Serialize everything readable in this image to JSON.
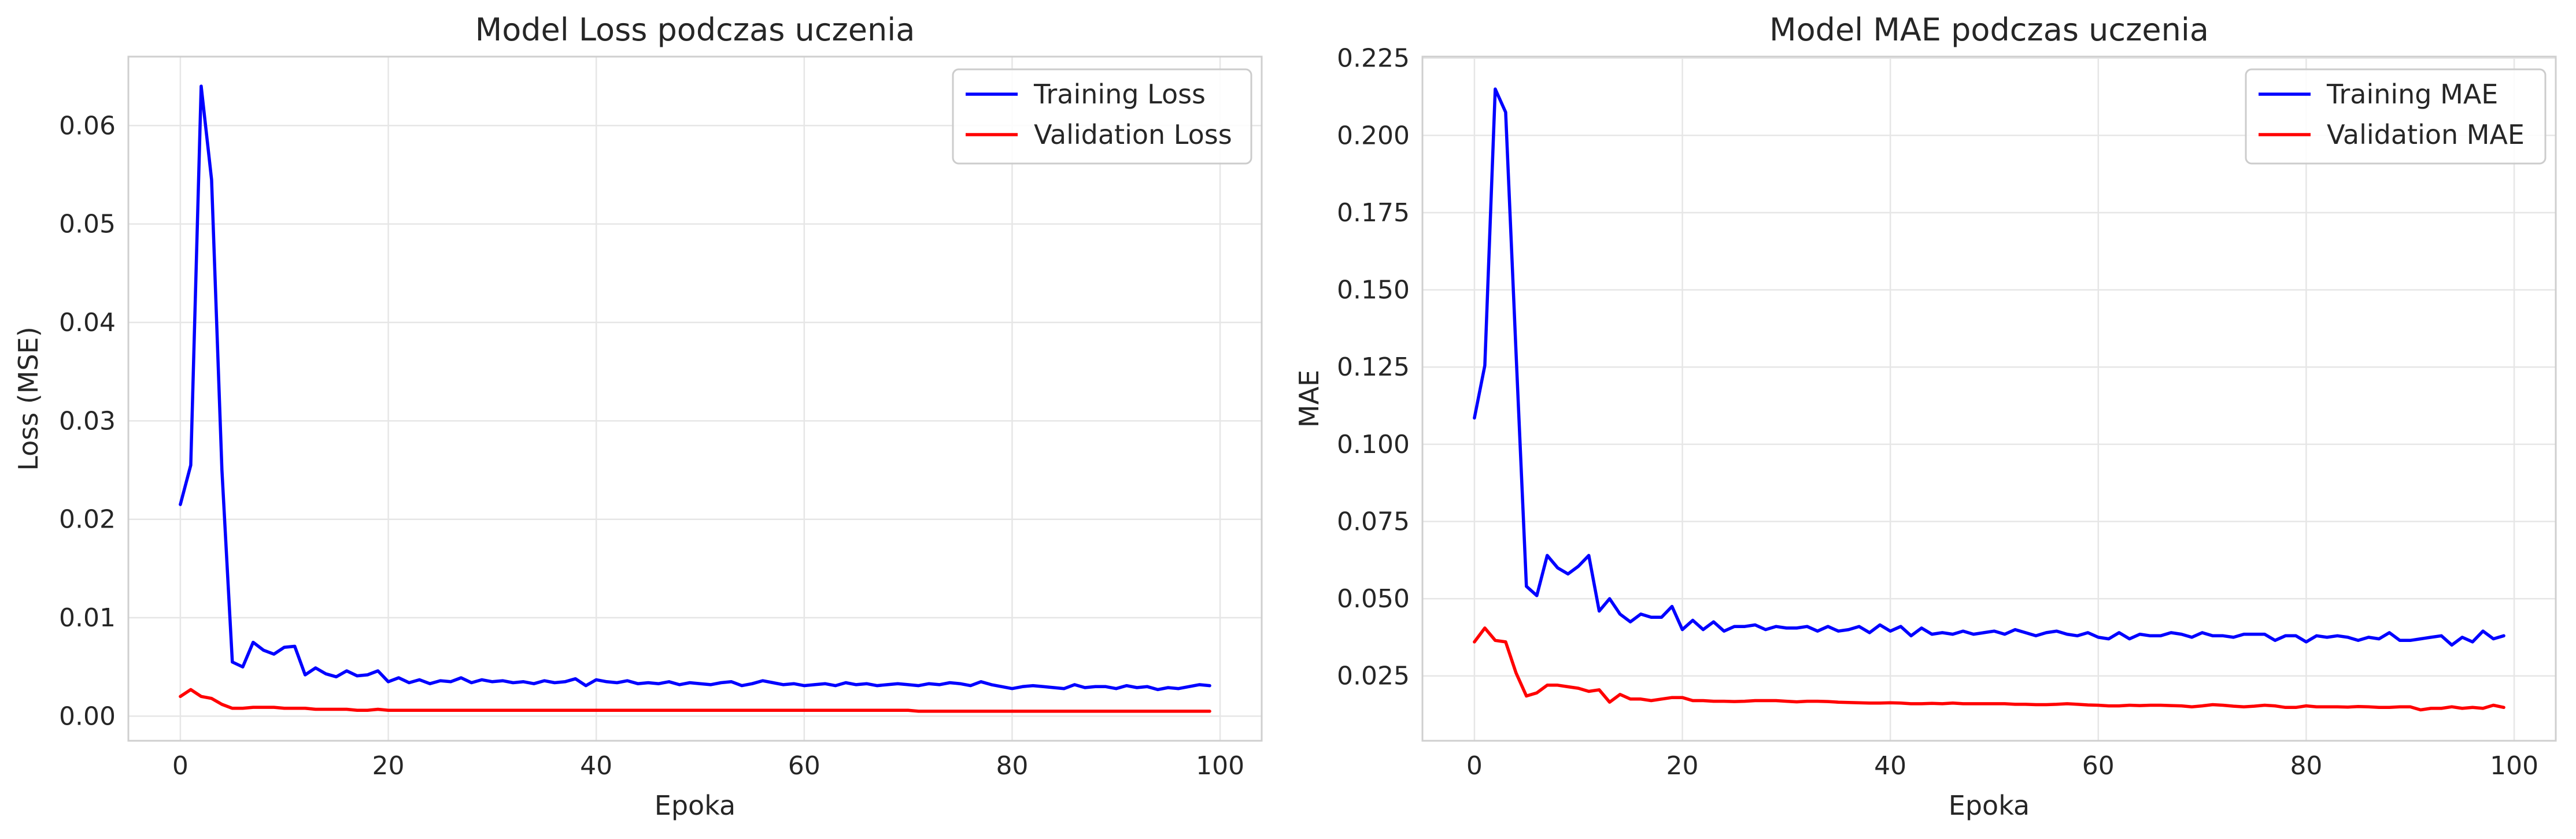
{
  "chart_data": [
    {
      "type": "line",
      "title": "Model Loss podczas uczenia",
      "xlabel": "Epoka",
      "ylabel": "Loss (MSE)",
      "xlim": [
        -5,
        104
      ],
      "ylim": [
        -0.0025,
        0.067
      ],
      "xticks": [
        0,
        20,
        40,
        60,
        80,
        100
      ],
      "xtick_labels": [
        "0",
        "20",
        "40",
        "60",
        "80",
        "100"
      ],
      "yticks": [
        0.0,
        0.01,
        0.02,
        0.03,
        0.04,
        0.05,
        0.06
      ],
      "ytick_labels": [
        "0.00",
        "0.01",
        "0.02",
        "0.03",
        "0.04",
        "0.05",
        "0.06"
      ],
      "grid": true,
      "legend_position": "top-right",
      "series": [
        {
          "name": "Training Loss",
          "color": "#0000ff",
          "values": [
            0.0215,
            0.0255,
            0.064,
            0.0545,
            0.025,
            0.0055,
            0.005,
            0.0075,
            0.0067,
            0.0063,
            0.007,
            0.0071,
            0.0042,
            0.0049,
            0.0043,
            0.004,
            0.0046,
            0.0041,
            0.0042,
            0.0046,
            0.0035,
            0.0039,
            0.0034,
            0.0037,
            0.0033,
            0.0036,
            0.0035,
            0.0039,
            0.0034,
            0.0037,
            0.0035,
            0.0036,
            0.0034,
            0.0035,
            0.0033,
            0.0036,
            0.0034,
            0.0035,
            0.0038,
            0.0031,
            0.0037,
            0.0035,
            0.0034,
            0.0036,
            0.0033,
            0.0034,
            0.0033,
            0.0035,
            0.0032,
            0.0034,
            0.0033,
            0.0032,
            0.0034,
            0.0035,
            0.0031,
            0.0033,
            0.0036,
            0.0034,
            0.0032,
            0.0033,
            0.0031,
            0.0032,
            0.0033,
            0.0031,
            0.0034,
            0.0032,
            0.0033,
            0.0031,
            0.0032,
            0.0033,
            0.0032,
            0.0031,
            0.0033,
            0.0032,
            0.0034,
            0.0033,
            0.0031,
            0.0035,
            0.0032,
            0.003,
            0.0028,
            0.003,
            0.0031,
            0.003,
            0.0029,
            0.0028,
            0.0032,
            0.0029,
            0.003,
            0.003,
            0.0028,
            0.0031,
            0.0029,
            0.003,
            0.0027,
            0.0029,
            0.0028,
            0.003,
            0.0032,
            0.0031
          ]
        },
        {
          "name": "Validation Loss",
          "color": "#ff0000",
          "values": [
            0.002,
            0.0027,
            0.002,
            0.0018,
            0.0012,
            0.0008,
            0.0008,
            0.0009,
            0.0009,
            0.0009,
            0.0008,
            0.0008,
            0.0008,
            0.0007,
            0.0007,
            0.0007,
            0.0007,
            0.0006,
            0.0006,
            0.0007,
            0.0006,
            0.0006,
            0.0006,
            0.0006,
            0.0006,
            0.0006,
            0.0006,
            0.0006,
            0.0006,
            0.0006,
            0.0006,
            0.0006,
            0.0006,
            0.0006,
            0.0006,
            0.0006,
            0.0006,
            0.0006,
            0.0006,
            0.0006,
            0.0006,
            0.0006,
            0.0006,
            0.0006,
            0.0006,
            0.0006,
            0.0006,
            0.0006,
            0.0006,
            0.0006,
            0.0006,
            0.0006,
            0.0006,
            0.0006,
            0.0006,
            0.0006,
            0.0006,
            0.0006,
            0.0006,
            0.0006,
            0.0006,
            0.0006,
            0.0006,
            0.0006,
            0.0006,
            0.0006,
            0.0006,
            0.0006,
            0.0006,
            0.0006,
            0.0006,
            0.0005,
            0.0005,
            0.0005,
            0.0005,
            0.0005,
            0.0005,
            0.0005,
            0.0005,
            0.0005,
            0.0005,
            0.0005,
            0.0005,
            0.0005,
            0.0005,
            0.0005,
            0.0005,
            0.0005,
            0.0005,
            0.0005,
            0.0005,
            0.0005,
            0.0005,
            0.0005,
            0.0005,
            0.0005,
            0.0005,
            0.0005,
            0.0005,
            0.0005
          ]
        }
      ]
    },
    {
      "type": "line",
      "title": "Model MAE podczas uczenia",
      "xlabel": "Epoka",
      "ylabel": "MAE",
      "xlim": [
        -5,
        104
      ],
      "ylim": [
        0.004,
        0.2255
      ],
      "xticks": [
        0,
        20,
        40,
        60,
        80,
        100
      ],
      "xtick_labels": [
        "0",
        "20",
        "40",
        "60",
        "80",
        "100"
      ],
      "yticks": [
        0.025,
        0.05,
        0.075,
        0.1,
        0.125,
        0.15,
        0.175,
        0.2,
        0.225
      ],
      "ytick_labels": [
        "0.025",
        "0.050",
        "0.075",
        "0.100",
        "0.125",
        "0.150",
        "0.175",
        "0.200",
        "0.225"
      ],
      "grid": true,
      "legend_position": "top-right",
      "series": [
        {
          "name": "Training MAE",
          "color": "#0000ff",
          "values": [
            0.1085,
            0.1255,
            0.215,
            0.2075,
            0.13,
            0.054,
            0.051,
            0.064,
            0.06,
            0.058,
            0.0605,
            0.064,
            0.046,
            0.05,
            0.045,
            0.0425,
            0.045,
            0.044,
            0.044,
            0.0475,
            0.04,
            0.043,
            0.04,
            0.0425,
            0.0395,
            0.041,
            0.041,
            0.0415,
            0.04,
            0.041,
            0.0405,
            0.0405,
            0.041,
            0.0395,
            0.041,
            0.0395,
            0.04,
            0.041,
            0.039,
            0.0415,
            0.0395,
            0.041,
            0.038,
            0.0405,
            0.0385,
            0.039,
            0.0385,
            0.0395,
            0.0385,
            0.039,
            0.0395,
            0.0385,
            0.04,
            0.039,
            0.038,
            0.039,
            0.0395,
            0.0385,
            0.038,
            0.039,
            0.0375,
            0.037,
            0.039,
            0.037,
            0.0385,
            0.038,
            0.038,
            0.039,
            0.0385,
            0.0375,
            0.039,
            0.038,
            0.038,
            0.0375,
            0.0385,
            0.0385,
            0.0385,
            0.0365,
            0.038,
            0.038,
            0.036,
            0.038,
            0.0375,
            0.038,
            0.0375,
            0.0365,
            0.0375,
            0.037,
            0.039,
            0.0365,
            0.0365,
            0.037,
            0.0375,
            0.038,
            0.035,
            0.0375,
            0.036,
            0.0395,
            0.037,
            0.038
          ]
        },
        {
          "name": "Validation MAE",
          "color": "#ff0000",
          "values": [
            0.036,
            0.0405,
            0.0365,
            0.036,
            0.026,
            0.0185,
            0.0195,
            0.022,
            0.022,
            0.0215,
            0.021,
            0.02,
            0.0205,
            0.0165,
            0.019,
            0.0175,
            0.0175,
            0.017,
            0.0175,
            0.018,
            0.018,
            0.017,
            0.017,
            0.0168,
            0.0168,
            0.0167,
            0.0168,
            0.017,
            0.017,
            0.017,
            0.0168,
            0.0166,
            0.0168,
            0.0168,
            0.0167,
            0.0165,
            0.0164,
            0.0163,
            0.0162,
            0.0162,
            0.0163,
            0.0162,
            0.016,
            0.016,
            0.0161,
            0.016,
            0.0162,
            0.016,
            0.016,
            0.016,
            0.016,
            0.016,
            0.0158,
            0.0158,
            0.0157,
            0.0157,
            0.0158,
            0.016,
            0.0158,
            0.0156,
            0.0155,
            0.0153,
            0.0153,
            0.0155,
            0.0154,
            0.0155,
            0.0155,
            0.0154,
            0.0153,
            0.015,
            0.0153,
            0.0157,
            0.0155,
            0.0152,
            0.015,
            0.0152,
            0.0155,
            0.0153,
            0.0148,
            0.0148,
            0.0153,
            0.015,
            0.015,
            0.015,
            0.0149,
            0.0151,
            0.015,
            0.0148,
            0.0148,
            0.015,
            0.015,
            0.014,
            0.0145,
            0.0145,
            0.015,
            0.0145,
            0.0148,
            0.0145,
            0.0155,
            0.0148
          ]
        }
      ]
    }
  ]
}
